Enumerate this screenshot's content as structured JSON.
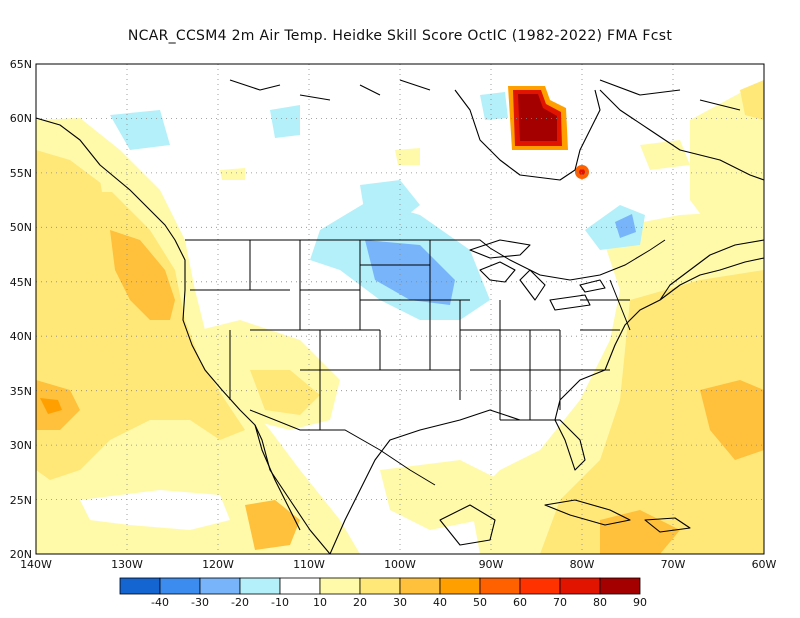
{
  "title": "NCAR_CCSM4  2m Air Temp. Heidke Skill Score OctIC (1982-2022) FMA Fcst",
  "lat_labels": [
    "65N",
    "60N",
    "55N",
    "50N",
    "45N",
    "40N",
    "35N",
    "30N",
    "25N",
    "20N"
  ],
  "lon_labels": [
    "140W",
    "130W",
    "120W",
    "110W",
    "100W",
    "90W",
    "80W",
    "70W",
    "60W"
  ],
  "colorbar": {
    "labels": [
      "-40",
      "-30",
      "-20",
      "-10",
      "10",
      "20",
      "30",
      "40",
      "50",
      "60",
      "70",
      "80",
      "90"
    ],
    "colors": [
      "#1464d2",
      "#3c8cf0",
      "#78b4fa",
      "#b4f0fa",
      "#ffffff",
      "#fffaaa",
      "#ffe878",
      "#ffc03c",
      "#ffa000",
      "#ff6000",
      "#ff3200",
      "#e11400",
      "#a50000"
    ]
  },
  "map": {
    "projection": "lat-lon",
    "lon_range": [
      "140W",
      "60W"
    ],
    "lat_range": [
      "20N",
      "65N"
    ],
    "grid": "dotted",
    "regions_colors": {
      "pale": "#fffaaa",
      "light": "#ffe878",
      "orange": "#ffc03c",
      "deep": "#ffa000",
      "red": "#e11400",
      "darkred": "#a50000",
      "cyan": "#b4f0fa",
      "blue": "#78b4fa",
      "darkblue": "#3c8cf0"
    }
  }
}
